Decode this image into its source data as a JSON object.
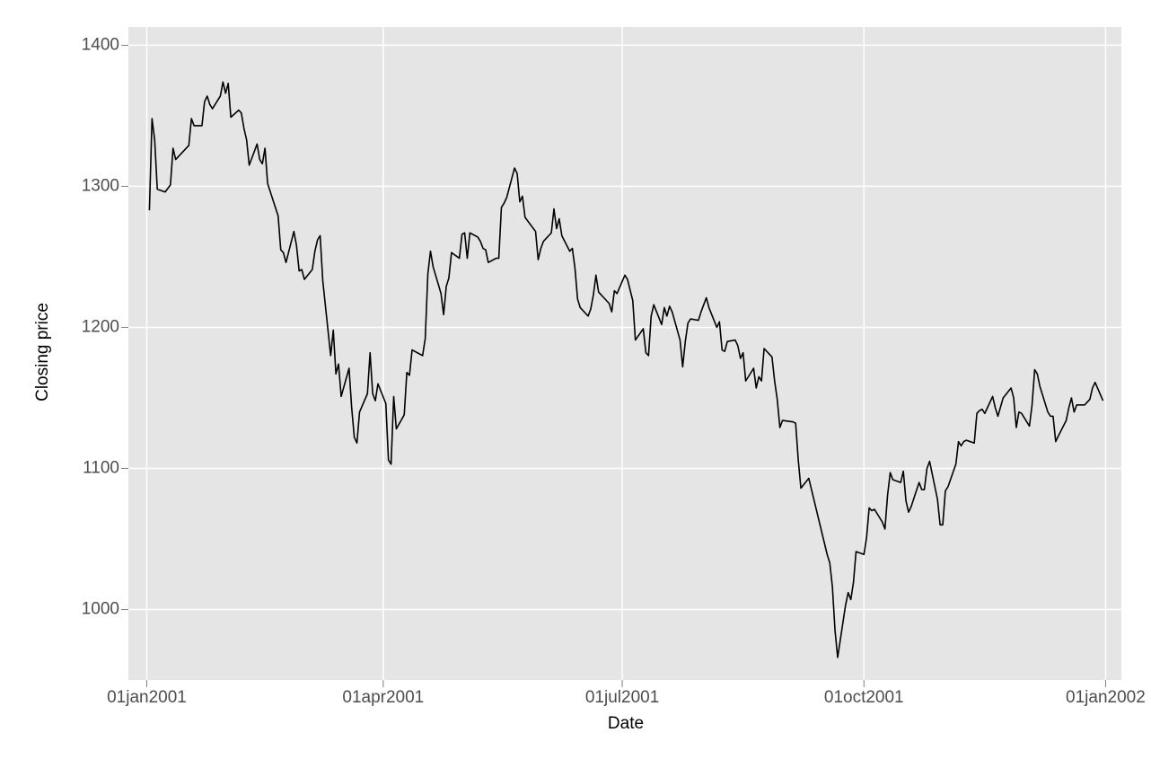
{
  "chart_data": {
    "type": "line",
    "x_label": "Date",
    "y_label": "Closing price",
    "color": "#000000",
    "grid": true,
    "xlim": [
      "2000-12-25",
      "2002-01-07"
    ],
    "ylim": [
      950,
      1413
    ],
    "xticks": [
      {
        "value": "2001-01-01",
        "label": "01jan2001"
      },
      {
        "value": "2001-04-01",
        "label": "01apr2001"
      },
      {
        "value": "2001-07-01",
        "label": "01jul2001"
      },
      {
        "value": "2001-10-01",
        "label": "01oct2001"
      },
      {
        "value": "2002-01-01",
        "label": "01jan2002"
      }
    ],
    "yticks": [
      1000,
      1100,
      1200,
      1300,
      1400
    ],
    "x": [
      "2001-01-02",
      "2001-01-03",
      "2001-01-04",
      "2001-01-05",
      "2001-01-08",
      "2001-01-10",
      "2001-01-11",
      "2001-01-12",
      "2001-01-16",
      "2001-01-17",
      "2001-01-18",
      "2001-01-19",
      "2001-01-22",
      "2001-01-23",
      "2001-01-24",
      "2001-01-25",
      "2001-01-26",
      "2001-01-29",
      "2001-01-30",
      "2001-01-31",
      "2001-02-01",
      "2001-02-02",
      "2001-02-05",
      "2001-02-06",
      "2001-02-07",
      "2001-02-08",
      "2001-02-09",
      "2001-02-12",
      "2001-02-13",
      "2001-02-14",
      "2001-02-15",
      "2001-02-16",
      "2001-02-20",
      "2001-02-21",
      "2001-02-22",
      "2001-02-23",
      "2001-02-26",
      "2001-02-27",
      "2001-02-28",
      "2001-03-01",
      "2001-03-02",
      "2001-03-05",
      "2001-03-06",
      "2001-03-07",
      "2001-03-08",
      "2001-03-09",
      "2001-03-12",
      "2001-03-13",
      "2001-03-14",
      "2001-03-15",
      "2001-03-16",
      "2001-03-19",
      "2001-03-20",
      "2001-03-21",
      "2001-03-22",
      "2001-03-23",
      "2001-03-26",
      "2001-03-27",
      "2001-03-28",
      "2001-03-29",
      "2001-03-30",
      "2001-04-02",
      "2001-04-03",
      "2001-04-04",
      "2001-04-05",
      "2001-04-06",
      "2001-04-09",
      "2001-04-10",
      "2001-04-11",
      "2001-04-12",
      "2001-04-16",
      "2001-04-17",
      "2001-04-18",
      "2001-04-19",
      "2001-04-20",
      "2001-04-23",
      "2001-04-24",
      "2001-04-25",
      "2001-04-26",
      "2001-04-27",
      "2001-04-30",
      "2001-05-01",
      "2001-05-02",
      "2001-05-03",
      "2001-05-04",
      "2001-05-07",
      "2001-05-08",
      "2001-05-09",
      "2001-05-10",
      "2001-05-11",
      "2001-05-14",
      "2001-05-15",
      "2001-05-16",
      "2001-05-17",
      "2001-05-18",
      "2001-05-21",
      "2001-05-22",
      "2001-05-23",
      "2001-05-24",
      "2001-05-25",
      "2001-05-29",
      "2001-05-30",
      "2001-05-31",
      "2001-06-01",
      "2001-06-04",
      "2001-06-05",
      "2001-06-06",
      "2001-06-07",
      "2001-06-08",
      "2001-06-11",
      "2001-06-12",
      "2001-06-13",
      "2001-06-14",
      "2001-06-15",
      "2001-06-18",
      "2001-06-19",
      "2001-06-20",
      "2001-06-21",
      "2001-06-22",
      "2001-06-25",
      "2001-06-26",
      "2001-06-27",
      "2001-06-28",
      "2001-06-29",
      "2001-07-02",
      "2001-07-03",
      "2001-07-05",
      "2001-07-06",
      "2001-07-09",
      "2001-07-10",
      "2001-07-11",
      "2001-07-12",
      "2001-07-13",
      "2001-07-16",
      "2001-07-17",
      "2001-07-18",
      "2001-07-19",
      "2001-07-20",
      "2001-07-23",
      "2001-07-24",
      "2001-07-25",
      "2001-07-26",
      "2001-07-27",
      "2001-07-30",
      "2001-07-31",
      "2001-08-01",
      "2001-08-02",
      "2001-08-03",
      "2001-08-06",
      "2001-08-07",
      "2001-08-08",
      "2001-08-09",
      "2001-08-10",
      "2001-08-13",
      "2001-08-14",
      "2001-08-15",
      "2001-08-16",
      "2001-08-17",
      "2001-08-20",
      "2001-08-21",
      "2001-08-22",
      "2001-08-23",
      "2001-08-24",
      "2001-08-27",
      "2001-08-28",
      "2001-08-29",
      "2001-08-30",
      "2001-08-31",
      "2001-09-04",
      "2001-09-05",
      "2001-09-06",
      "2001-09-07",
      "2001-09-10",
      "2001-09-17",
      "2001-09-18",
      "2001-09-19",
      "2001-09-20",
      "2001-09-21",
      "2001-09-24",
      "2001-09-25",
      "2001-09-26",
      "2001-09-27",
      "2001-09-28",
      "2001-10-01",
      "2001-10-02",
      "2001-10-03",
      "2001-10-04",
      "2001-10-05",
      "2001-10-08",
      "2001-10-09",
      "2001-10-10",
      "2001-10-11",
      "2001-10-12",
      "2001-10-15",
      "2001-10-16",
      "2001-10-17",
      "2001-10-18",
      "2001-10-19",
      "2001-10-22",
      "2001-10-23",
      "2001-10-24",
      "2001-10-25",
      "2001-10-26",
      "2001-10-29",
      "2001-10-30",
      "2001-10-31",
      "2001-11-01",
      "2001-11-02",
      "2001-11-05",
      "2001-11-06",
      "2001-11-07",
      "2001-11-08",
      "2001-11-09",
      "2001-11-12",
      "2001-11-13",
      "2001-11-14",
      "2001-11-15",
      "2001-11-16",
      "2001-11-19",
      "2001-11-20",
      "2001-11-21",
      "2001-11-23",
      "2001-11-26",
      "2001-11-27",
      "2001-11-28",
      "2001-11-29",
      "2001-11-30",
      "2001-12-03",
      "2001-12-04",
      "2001-12-05",
      "2001-12-06",
      "2001-12-07",
      "2001-12-10",
      "2001-12-11",
      "2001-12-12",
      "2001-12-13",
      "2001-12-14",
      "2001-12-17",
      "2001-12-18",
      "2001-12-19",
      "2001-12-20",
      "2001-12-21",
      "2001-12-24",
      "2001-12-26",
      "2001-12-27",
      "2001-12-28",
      "2001-12-31"
    ],
    "values": [
      1283,
      1348,
      1333,
      1298,
      1296,
      1301,
      1327,
      1319,
      1327,
      1329,
      1348,
      1343,
      1343,
      1360,
      1364,
      1358,
      1355,
      1364,
      1374,
      1366,
      1373,
      1349,
      1354,
      1352,
      1341,
      1333,
      1315,
      1330,
      1319,
      1316,
      1327,
      1302,
      1279,
      1255,
      1253,
      1246,
      1268,
      1258,
      1240,
      1241,
      1234,
      1241,
      1254,
      1262,
      1265,
      1233,
      1180,
      1198,
      1167,
      1174,
      1151,
      1171,
      1143,
      1122,
      1118,
      1140,
      1153,
      1182,
      1153,
      1148,
      1160,
      1146,
      1106,
      1103,
      1151,
      1128,
      1138,
      1168,
      1166,
      1184,
      1180,
      1192,
      1238,
      1254,
      1243,
      1224,
      1209,
      1229,
      1235,
      1253,
      1249,
      1266,
      1267,
      1249,
      1267,
      1264,
      1261,
      1256,
      1255,
      1246,
      1249,
      1249,
      1285,
      1288,
      1292,
      1313,
      1309,
      1289,
      1293,
      1278,
      1268,
      1248,
      1256,
      1261,
      1267,
      1284,
      1270,
      1277,
      1265,
      1254,
      1256,
      1242,
      1220,
      1214,
      1208,
      1213,
      1223,
      1237,
      1225,
      1219,
      1217,
      1211,
      1226,
      1224,
      1237,
      1234,
      1219,
      1191,
      1199,
      1182,
      1180,
      1208,
      1216,
      1202,
      1214,
      1208,
      1215,
      1211,
      1191,
      1172,
      1190,
      1203,
      1206,
      1205,
      1211,
      1216,
      1221,
      1214,
      1200,
      1204,
      1184,
      1183,
      1190,
      1191,
      1187,
      1178,
      1182,
      1162,
      1171,
      1157,
      1165,
      1162,
      1185,
      1179,
      1162,
      1149,
      1129,
      1134,
      1133,
      1132,
      1106,
      1086,
      1093,
      1039,
      1033,
      1016,
      985,
      966,
      1003,
      1012,
      1007,
      1019,
      1041,
      1039,
      1051,
      1072,
      1070,
      1071,
      1062,
      1057,
      1081,
      1097,
      1092,
      1090,
      1098,
      1077,
      1069,
      1073,
      1090,
      1085,
      1085,
      1100,
      1105,
      1078,
      1060,
      1060,
      1084,
      1087,
      1103,
      1119,
      1116,
      1119,
      1120,
      1118,
      1139,
      1141,
      1142,
      1139,
      1151,
      1143,
      1137,
      1150,
      1157,
      1150,
      1129,
      1140,
      1139,
      1130,
      1145,
      1170,
      1167,
      1158,
      1140,
      1137,
      1137,
      1119,
      1123,
      1134,
      1143,
      1150,
      1140,
      1145,
      1145,
      1149,
      1157,
      1161,
      1148
    ]
  }
}
